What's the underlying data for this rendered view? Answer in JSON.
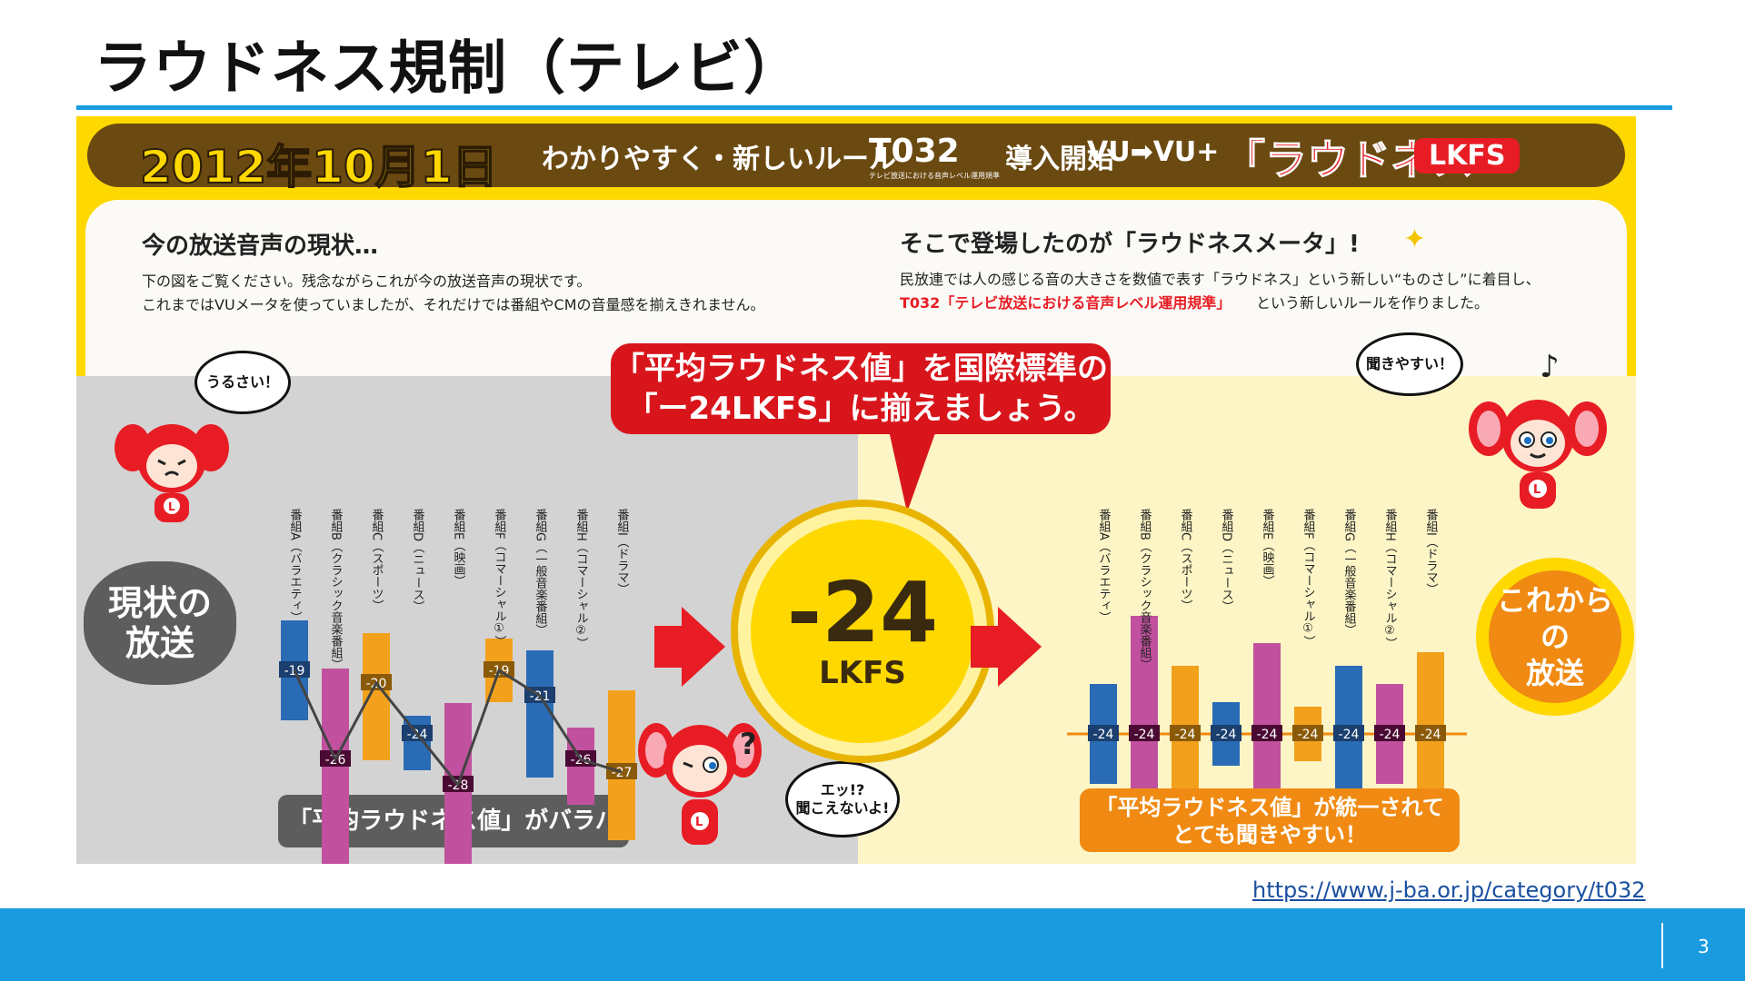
{
  "slide": {
    "title": "ラウドネス規制（テレビ）",
    "url": "https://www.j-ba.or.jp/category/t032",
    "page_number": "3"
  },
  "banner": {
    "date": "2012年10月1日",
    "rule": "わかりやすく・新しいルール",
    "code": "T032",
    "code_sub": "テレビ放送における音声レベル運用規準",
    "start": "導入開始",
    "vu": "VU➡VU+",
    "bracket": "「ラウドネス",
    "lkfs": "LKFS",
    "bracket_close": "」"
  },
  "left_section": {
    "heading": "今の放送音声の現状…",
    "line1": "下の図をご覧ください。残念ながらこれが今の放送音声の現状です。",
    "line2": "これまではVUメータを使っていましたが、それだけでは番組やCMの音量感を揃えきれません。",
    "cloud": "現状の\n放送",
    "bubble_top": "うるさい！",
    "bubble_bottom": "エッ!?\n聞こえないよ!",
    "pill": "「平均ラウドネス値」がバラバラ"
  },
  "right_section": {
    "heading": "そこで登場したのが「ラウドネスメータ」!",
    "line1": "民放連では人の感じる音の大きさを数値で表す「ラウドネス」という新しい“ものさし”に着目し、",
    "line2_red": "T032「テレビ放送における音声レベル運用規準」",
    "line2_rest": "という新しいルールを作りました。",
    "sun": "これからの\n放送",
    "bubble": "聞きやすい！",
    "pill": "「平均ラウドネス値」が統一されて\nとても聞きやすい！"
  },
  "center": {
    "callout_line1": "「平均ラウドネス値」を国際標準の",
    "callout_line2": "「ー24LKFS」に揃えましょう。",
    "value": "-24",
    "unit": "LKFS"
  },
  "colors": {
    "blue": "#2a6bb5",
    "magenta": "#c1519e",
    "orange": "#f3a11c",
    "red": "#e81c24",
    "yellow": "#ffd800",
    "accent": "#1a9be0"
  },
  "chart_data": [
    {
      "type": "bar",
      "title": "",
      "categories": [
        "番組A(バラエティ)",
        "番組B(クラシック音楽番組)",
        "番組C(スポーツ)",
        "番組D(ニュース)",
        "番組E(映画)",
        "番組F(コマーシャル①)",
        "番組G(一般音楽番組)",
        "番組H(コマーシャル②)",
        "番組I(ドラマ)"
      ],
      "values": [
        -19,
        -26,
        -20,
        -24,
        -28,
        -19,
        -21,
        -26,
        -27
      ],
      "value_labels": [
        "-19",
        "-26",
        "-20",
        "-24",
        "-28",
        "-19",
        "-21",
        "-26",
        "-27"
      ],
      "bar_colors": [
        "blue",
        "magenta",
        "orange",
        "blue",
        "magenta",
        "orange",
        "blue",
        "magenta",
        "orange"
      ]
    },
    {
      "type": "bar",
      "title": "",
      "categories": [
        "番組A(バラエティ)",
        "番組B(クラシック音楽番組)",
        "番組C(スポーツ)",
        "番組D(ニュース)",
        "番組E(映画)",
        "番組F(コマーシャル①)",
        "番組G(一般音楽番組)",
        "番組H(コマーシャル②)",
        "番組I(ドラマ)"
      ],
      "values": [
        -24,
        -24,
        -24,
        -24,
        -24,
        -24,
        -24,
        -24,
        -24
      ],
      "value_labels": [
        "-24",
        "-24",
        "-24",
        "-24",
        "-24",
        "-24",
        "-24",
        "-24",
        "-24"
      ],
      "bar_colors": [
        "blue",
        "magenta",
        "orange",
        "blue",
        "magenta",
        "orange",
        "blue",
        "magenta",
        "orange"
      ]
    }
  ],
  "bar_labels": [
    "番組A（バラエティ）",
    "番組B（クラシック音楽番組）",
    "番組C（スポーツ）",
    "番組D（ニュース）",
    "番組E（映画）",
    "番組F（コマーシャル①）",
    "番組G（一般音楽番組）",
    "番組H（コマーシャル②）",
    "番組I（ドラマ）"
  ]
}
